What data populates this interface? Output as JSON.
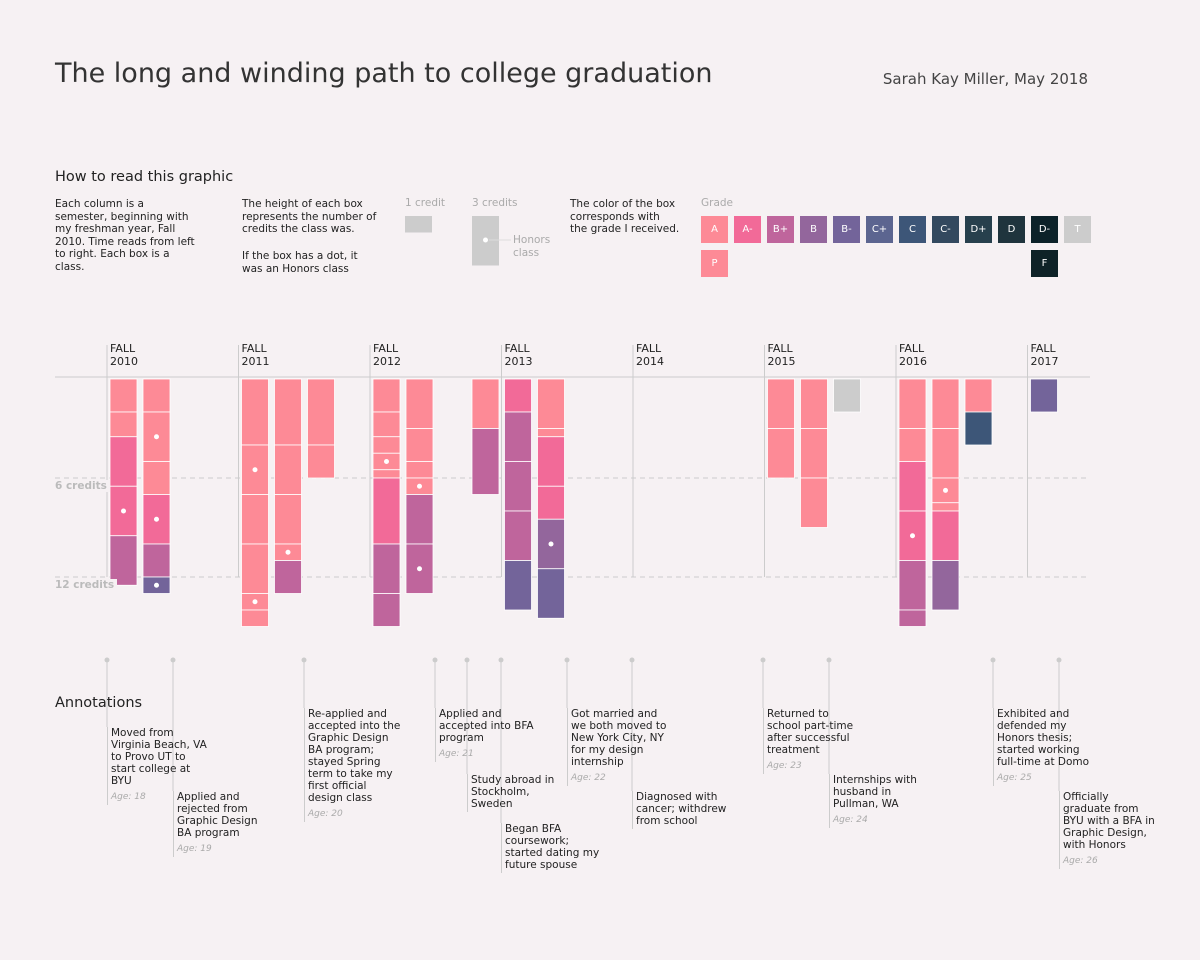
{
  "header": {
    "title": "The long and winding path to college graduation",
    "author": "Sarah Kay Miller, May 2018"
  },
  "how_to_read": {
    "title": "How to read this graphic",
    "col1": "Each column is a semester, beginning with my freshman year, Fall 2010. Time reads from left to right. Each box is a class.",
    "col2": [
      "The height of each box represents the number of credits the class was.",
      "If the box has a dot, it was an Honors class"
    ],
    "one_credit": "1 credit",
    "three_credits": "3 credits",
    "honors": "Honors class",
    "color_text": "The color of the box corresponds with the grade I received.",
    "grade": "Grade"
  },
  "chart_data": {
    "type": "semester-columns",
    "ylim": [
      0,
      15
    ],
    "yticks": [
      {
        "value": 6,
        "label": "6 credits"
      },
      {
        "value": 12,
        "label": "12 credits"
      }
    ],
    "grades": [
      {
        "grade": "A",
        "color": "#fd8a96"
      },
      {
        "grade": "A-",
        "color": "#f26a98"
      },
      {
        "grade": "B+",
        "color": "#bf659c"
      },
      {
        "grade": "B",
        "color": "#93669c"
      },
      {
        "grade": "B-",
        "color": "#73649a"
      },
      {
        "grade": "C+",
        "color": "#5c6590"
      },
      {
        "grade": "C",
        "color": "#3d5678"
      },
      {
        "grade": "C-",
        "color": "#33495f"
      },
      {
        "grade": "D+",
        "color": "#27404d"
      },
      {
        "grade": "D",
        "color": "#1f343d"
      },
      {
        "grade": "D-",
        "color": "#0c2229"
      },
      {
        "grade": "T",
        "color": "#cccccc"
      },
      {
        "grade": "P",
        "color": "#fd8a96"
      },
      {
        "grade": "F",
        "color": "#0e2227"
      }
    ],
    "years": [
      {
        "label": "FALL 2010",
        "semesters": [
          [
            {
              "credits": 2,
              "grade": "A"
            },
            {
              "credits": 1.5,
              "grade": "A"
            },
            {
              "credits": 3,
              "grade": "A-"
            },
            {
              "credits": 3,
              "grade": "A-",
              "honors": true
            },
            {
              "credits": 3,
              "grade": "B+"
            }
          ],
          [
            {
              "credits": 2,
              "grade": "A"
            },
            {
              "credits": 3,
              "grade": "A",
              "honors": true
            },
            {
              "credits": 2,
              "grade": "A"
            },
            {
              "credits": 3,
              "grade": "A-",
              "honors": true
            },
            {
              "credits": 2,
              "grade": "B+"
            },
            {
              "credits": 1,
              "grade": "B-",
              "honors": true
            }
          ]
        ]
      },
      {
        "label": "FALL 2011",
        "semesters": [
          [
            {
              "credits": 4,
              "grade": "A"
            },
            {
              "credits": 3,
              "grade": "A",
              "honors": true
            },
            {
              "credits": 3,
              "grade": "A"
            },
            {
              "credits": 3,
              "grade": "A"
            },
            {
              "credits": 1,
              "grade": "A",
              "honors": true
            },
            {
              "credits": 1,
              "grade": "A"
            }
          ],
          [
            {
              "credits": 4,
              "grade": "A"
            },
            {
              "credits": 3,
              "grade": "A"
            },
            {
              "credits": 3,
              "grade": "A"
            },
            {
              "credits": 1,
              "grade": "A",
              "honors": true
            },
            {
              "credits": 2,
              "grade": "B+"
            }
          ],
          [
            {
              "credits": 4,
              "grade": "A"
            },
            {
              "credits": 2,
              "grade": "A"
            }
          ]
        ]
      },
      {
        "label": "FALL 2012",
        "semesters": [
          [
            {
              "credits": 2,
              "grade": "A"
            },
            {
              "credits": 1.5,
              "grade": "A"
            },
            {
              "credits": 1,
              "grade": "A"
            },
            {
              "credits": 1,
              "grade": "A",
              "honors": true
            },
            {
              "credits": 0.5,
              "grade": "A"
            },
            {
              "credits": 4,
              "grade": "A-"
            },
            {
              "credits": 3,
              "grade": "B+"
            },
            {
              "credits": 2,
              "grade": "B+"
            }
          ],
          [
            {
              "credits": 3,
              "grade": "A"
            },
            {
              "credits": 2,
              "grade": "A"
            },
            {
              "credits": 1,
              "grade": "A"
            },
            {
              "credits": 1,
              "grade": "A",
              "honors": true
            },
            {
              "credits": 3,
              "grade": "B+"
            },
            {
              "credits": 3,
              "grade": "B+",
              "honors": true
            }
          ],
          [],
          [
            {
              "credits": 3,
              "grade": "A"
            },
            {
              "credits": 4,
              "grade": "B+"
            }
          ]
        ]
      },
      {
        "label": "FALL 2013",
        "semesters": [
          [
            {
              "credits": 2,
              "grade": "A-"
            },
            {
              "credits": 3,
              "grade": "B+"
            },
            {
              "credits": 3,
              "grade": "B+"
            },
            {
              "credits": 3,
              "grade": "B+"
            },
            {
              "credits": 3,
              "grade": "B-"
            }
          ],
          [
            {
              "credits": 3,
              "grade": "A"
            },
            {
              "credits": 0.5,
              "grade": "A"
            },
            {
              "credits": 3,
              "grade": "A-"
            },
            {
              "credits": 2,
              "grade": "A-"
            },
            {
              "credits": 3,
              "grade": "B",
              "honors": true
            },
            {
              "credits": 3,
              "grade": "B-"
            }
          ]
        ]
      },
      {
        "label": "FALL 2014",
        "semesters": []
      },
      {
        "label": "FALL 2015",
        "semesters": [
          [
            {
              "credits": 3,
              "grade": "A"
            },
            {
              "credits": 3,
              "grade": "A"
            }
          ],
          [
            {
              "credits": 3,
              "grade": "A"
            },
            {
              "credits": 3,
              "grade": "A"
            },
            {
              "credits": 3,
              "grade": "A"
            }
          ],
          [
            {
              "credits": 2,
              "grade": "T"
            }
          ]
        ]
      },
      {
        "label": "FALL 2016",
        "semesters": [
          [
            {
              "credits": 3,
              "grade": "A"
            },
            {
              "credits": 2,
              "grade": "A"
            },
            {
              "credits": 3,
              "grade": "A-"
            },
            {
              "credits": 3,
              "grade": "A-",
              "honors": true
            },
            {
              "credits": 3,
              "grade": "B+"
            },
            {
              "credits": 1,
              "grade": "B+"
            }
          ],
          [
            {
              "credits": 3,
              "grade": "A"
            },
            {
              "credits": 3,
              "grade": "A"
            },
            {
              "credits": 1.5,
              "grade": "A",
              "honors": true
            },
            {
              "credits": 0.5,
              "grade": "A"
            },
            {
              "credits": 3,
              "grade": "A-"
            },
            {
              "credits": 3,
              "grade": "B"
            }
          ],
          [
            {
              "credits": 2,
              "grade": "A"
            },
            {
              "credits": 2,
              "grade": "C"
            }
          ]
        ]
      },
      {
        "label": "FALL 2017",
        "semesters": [
          [
            {
              "credits": 2,
              "grade": "B-"
            }
          ]
        ]
      }
    ]
  },
  "annotations": {
    "title": "Annotations",
    "items": [
      {
        "text": "Moved from Virginia Beach, VA to Provo UT to start college at BYU",
        "age": "Age: 18"
      },
      {
        "text": "Applied and rejected from Graphic Design BA program",
        "age": "Age: 19"
      },
      {
        "text": "Re-applied and accepted into the Graphic Design BA program; stayed Spring term to take my first official design class",
        "age": "Age: 20"
      },
      {
        "text": "Applied and accepted into BFA program",
        "age": "Age: 21"
      },
      {
        "text": "Study abroad in Stockholm, Sweden"
      },
      {
        "text": "Began BFA coursework; started dating my future spouse"
      },
      {
        "text": "Got married and we both moved to New York City, NY for my design internship",
        "age": "Age: 22"
      },
      {
        "text": "Diagnosed with cancer; withdrew from school"
      },
      {
        "text": "Returned to school part-time after successful treatment",
        "age": "Age: 23"
      },
      {
        "text": "Internships with husband in Pullman, WA",
        "age": "Age: 24"
      },
      {
        "text": "Exhibited and defended my Honors thesis; started working full-time at Domo",
        "age": "Age: 25"
      },
      {
        "text": "Officially graduate from BYU with a BFA in Graphic Design, with Honors",
        "age": "Age: 26"
      }
    ]
  }
}
